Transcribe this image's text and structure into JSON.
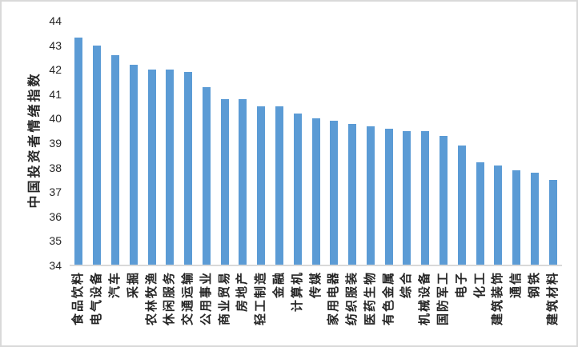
{
  "chart_data": {
    "type": "bar",
    "title": "",
    "xlabel": "",
    "ylabel": "中国投资者情绪指数",
    "categories": [
      "食品饮料",
      "电气设备",
      "汽车",
      "采掘",
      "农林牧渔",
      "休闲服务",
      "交通运输",
      "公用事业",
      "商业贸易",
      "房地产",
      "轻工制造",
      "金融",
      "计算机",
      "传媒",
      "家用电器",
      "纺织服装",
      "医药生物",
      "有色金属",
      "综合",
      "机械设备",
      "国防军工",
      "电子",
      "化工",
      "建筑装饰",
      "通信",
      "钢铁",
      "建筑材料"
    ],
    "values": [
      43.3,
      43.0,
      42.6,
      42.2,
      42.0,
      42.0,
      41.9,
      41.3,
      40.8,
      40.8,
      40.5,
      40.5,
      40.2,
      40.0,
      39.9,
      39.8,
      39.7,
      39.6,
      39.5,
      39.5,
      39.3,
      38.9,
      38.2,
      38.1,
      37.9,
      37.8,
      37.5
    ],
    "yticks": [
      44,
      43,
      42,
      41,
      40,
      39,
      38,
      37,
      36,
      35,
      34
    ],
    "ylim": [
      34,
      44
    ],
    "grid": "off",
    "legend": "none",
    "bar_color": "#5B9BD5",
    "axis_line_color": "#D9D9D9",
    "text_color": "#262626",
    "border_color": "#D9D9D9"
  }
}
